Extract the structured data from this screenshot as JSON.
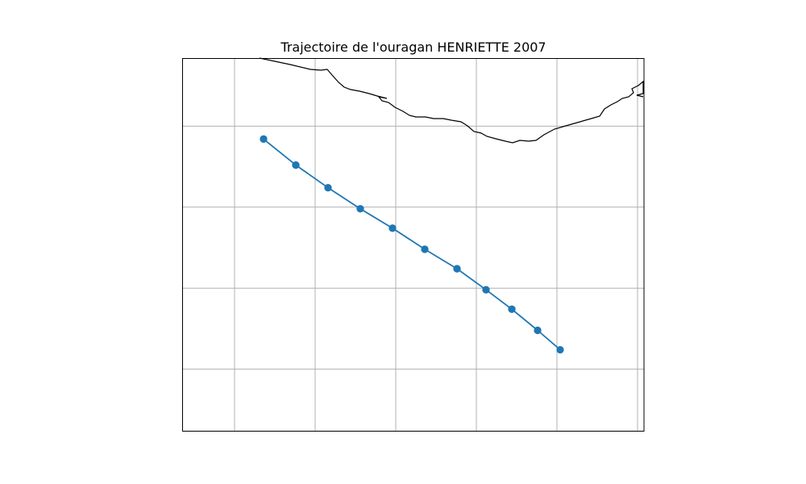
{
  "chart_data": {
    "type": "line",
    "title": "Trajectoire de l'ouragan HENRIETTE 2007",
    "xlabel": "",
    "ylabel": "",
    "map_projection": "cartopy PlateCarree",
    "xlim": [
      -117.6,
      -103.3
    ],
    "ylim": [
      13.1,
      24.6
    ],
    "grid": true,
    "series": [
      {
        "color": "#1f77b4",
        "marker": "circle",
        "x": [
          -115.1,
          -114.1,
          -113.1,
          -112.1,
          -111.1,
          -110.1,
          -109.1,
          -108.2,
          -107.4,
          -106.6,
          -105.9,
          -106.6,
          -107.4,
          -108.2,
          -109.1,
          -110.1,
          -111.1,
          -112.1,
          -113.1,
          -114.1,
          -115.1
        ],
        "y": [
          22.1,
          21.3,
          20.6,
          19.95,
          19.35,
          18.7,
          18.1,
          17.45,
          16.85,
          16.2,
          15.6,
          16.2,
          16.85,
          17.45,
          18.1,
          18.7,
          19.35,
          19.95,
          20.6,
          21.3,
          22.1
        ]
      }
    ],
    "coastline_color": "#000000",
    "grid_color": "#b0b0b0"
  }
}
